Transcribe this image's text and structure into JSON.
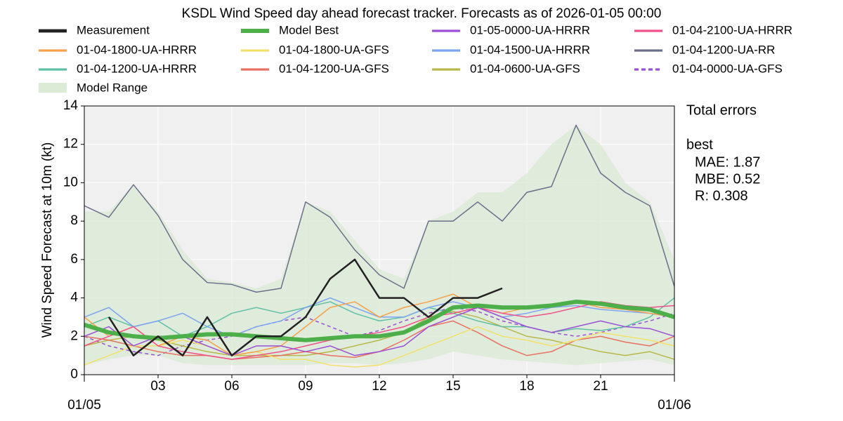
{
  "chart_data": {
    "type": "line",
    "title": "KSDL Wind Speed day ahead forecast tracker. Forecasts as of 2026-01-05 00:00",
    "y_label": "Wind Speed Forecast at 10m (kt)",
    "x": [
      0,
      1,
      2,
      3,
      4,
      5,
      6,
      7,
      8,
      9,
      10,
      11,
      12,
      13,
      14,
      15,
      16,
      17,
      18,
      19,
      20,
      21,
      22,
      23,
      24
    ],
    "xlim": [
      0,
      24
    ],
    "xticks": [
      {
        "value": 3,
        "label": "03"
      },
      {
        "value": 6,
        "label": "06"
      },
      {
        "value": 9,
        "label": "09"
      },
      {
        "value": 12,
        "label": "12"
      },
      {
        "value": 15,
        "label": "15"
      },
      {
        "value": 18,
        "label": "18"
      },
      {
        "value": 21,
        "label": "21"
      }
    ],
    "xticks_date": [
      {
        "value": 0,
        "label": "01/05"
      },
      {
        "value": 24,
        "label": "01/06"
      }
    ],
    "ylim": [
      0,
      14
    ],
    "yticks": [
      0,
      2,
      4,
      6,
      8,
      10,
      12,
      14
    ],
    "grid": true,
    "range": {
      "name": "Model Range",
      "color": "#dcebd6",
      "upper": [
        8.5,
        8.5,
        9.9,
        8.5,
        6.5,
        5.0,
        4.8,
        4.5,
        5.0,
        9.0,
        8.5,
        7.0,
        5.5,
        5.0,
        8.0,
        8.5,
        9.5,
        9.5,
        10.5,
        12.0,
        13.0,
        12.0,
        10.0,
        9.0,
        6.0
      ],
      "lower": [
        0.5,
        0.8,
        1.0,
        1.0,
        0.6,
        0.5,
        0.5,
        0.5,
        0.5,
        0.5,
        0.6,
        0.6,
        0.5,
        0.6,
        0.8,
        1.2,
        1.0,
        0.8,
        0.7,
        0.6,
        0.5,
        0.6,
        0.7,
        0.8,
        0.5
      ]
    },
    "series": [
      {
        "name": "Measurement",
        "color": "#222222",
        "width": 2.5,
        "values": [
          null,
          3,
          1,
          2,
          1,
          3,
          1,
          2,
          2,
          3,
          5,
          6,
          4,
          4,
          3,
          4,
          4,
          4.5,
          null,
          null,
          null,
          null,
          null,
          null,
          null
        ]
      },
      {
        "name": "Model Best",
        "color": "#4daf4a",
        "width": 6,
        "values": [
          2.6,
          2.2,
          2.0,
          1.9,
          2.0,
          2.1,
          2.1,
          2.0,
          1.9,
          1.8,
          1.9,
          2.0,
          2.0,
          2.2,
          2.8,
          3.5,
          3.6,
          3.5,
          3.5,
          3.6,
          3.8,
          3.7,
          3.5,
          3.4,
          3.0
        ]
      },
      {
        "name": "01-05-0000-UA-HRRR",
        "color": "#9b4fd6",
        "width": 1.5,
        "values": [
          2,
          2.5,
          1.5,
          2,
          2,
          1.5,
          1,
          1.5,
          1.5,
          1.2,
          1.5,
          1.0,
          1.2,
          1.5,
          2.5,
          3.0,
          3.5,
          3.0,
          2.5,
          2.2,
          2.5,
          2.8,
          2.5,
          2.4,
          2.0
        ]
      },
      {
        "name": "01-04-2100-UA-HRRR",
        "color": "#f0508a",
        "width": 1.5,
        "values": [
          1.5,
          2.0,
          2.5,
          1.5,
          1.2,
          1.0,
          0.8,
          1.0,
          1.2,
          1.5,
          1.8,
          2.0,
          2.2,
          2.5,
          3.0,
          3.2,
          3.5,
          3.2,
          3.0,
          3.2,
          3.5,
          3.8,
          3.6,
          3.5,
          3.6
        ]
      },
      {
        "name": "01-04-1800-UA-HRRR",
        "color": "#f5a04a",
        "width": 1.5,
        "values": [
          3.0,
          2.0,
          2.5,
          1.5,
          2.0,
          1.8,
          1.0,
          1.2,
          1.5,
          2.5,
          3.5,
          3.8,
          3.0,
          3.5,
          3.8,
          4.2,
          3.5,
          3.2,
          3.5,
          3.6,
          3.8,
          3.5,
          3.4,
          3.2,
          3.0
        ]
      },
      {
        "name": "01-04-1800-UA-GFS",
        "color": "#f2e06b",
        "width": 1.5,
        "values": [
          0.5,
          1.0,
          1.5,
          1.5,
          1.8,
          1.5,
          1.0,
          1.2,
          0.8,
          0.8,
          0.5,
          0.4,
          0.5,
          1.0,
          1.5,
          2.0,
          2.5,
          2.0,
          1.8,
          1.5,
          1.8,
          2.2,
          2.0,
          1.8,
          1.5
        ]
      },
      {
        "name": "01-04-1500-UA-HRRR",
        "color": "#7da4f0",
        "width": 1.5,
        "values": [
          3.0,
          3.5,
          2.5,
          2.8,
          3.2,
          2.5,
          2.0,
          2.5,
          2.8,
          3.5,
          4.0,
          3.5,
          3.0,
          3.0,
          3.5,
          3.8,
          3.5,
          3.0,
          3.2,
          3.5,
          3.6,
          3.4,
          3.3,
          3.2,
          3.0
        ]
      },
      {
        "name": "01-04-1200-UA-RR",
        "color": "#6a6f8a",
        "width": 1.5,
        "values": [
          8.8,
          8.2,
          9.9,
          8.3,
          6.0,
          4.8,
          4.7,
          4.3,
          4.5,
          9.0,
          8.2,
          6.5,
          5.2,
          4.5,
          8.0,
          8.0,
          9.0,
          8.0,
          9.5,
          9.8,
          13.0,
          10.5,
          9.5,
          8.8,
          4.6
        ]
      },
      {
        "name": "01-04-1200-UA-HRRR",
        "color": "#5ec0a6",
        "width": 1.5,
        "values": [
          2.5,
          3.0,
          2.5,
          2.8,
          2.0,
          2.5,
          3.2,
          3.5,
          3.2,
          3.5,
          3.8,
          3.2,
          2.8,
          3.0,
          3.5,
          3.2,
          2.8,
          2.5,
          2.5,
          2.2,
          2.4,
          2.3,
          2.5,
          3.0,
          4.0
        ]
      },
      {
        "name": "01-04-1200-UA-GFS",
        "color": "#e87060",
        "width": 1.5,
        "values": [
          2.0,
          1.8,
          1.5,
          1.2,
          1.0,
          1.0,
          0.8,
          0.9,
          1.0,
          1.2,
          1.0,
          0.9,
          1.2,
          1.8,
          2.5,
          2.8,
          2.2,
          1.5,
          1.0,
          1.2,
          1.8,
          2.0,
          1.7,
          1.5,
          2.0
        ]
      },
      {
        "name": "01-04-0600-UA-GFS",
        "color": "#b8b84a",
        "width": 1.5,
        "values": [
          1.5,
          1.8,
          2.0,
          1.8,
          1.5,
          1.2,
          1.0,
          1.0,
          1.0,
          1.0,
          1.2,
          1.5,
          1.8,
          2.2,
          3.0,
          3.3,
          3.0,
          2.5,
          2.0,
          1.8,
          1.5,
          1.2,
          1.0,
          1.2,
          0.8
        ]
      },
      {
        "name": "01-04-0000-UA-GFS",
        "color": "#9b4fd6",
        "width": 1.5,
        "dashed": true,
        "values": [
          2.0,
          1.5,
          1.2,
          1.0,
          1.5,
          1.8,
          2.0,
          2.5,
          2.8,
          3.0,
          2.5,
          2.0,
          2.3,
          2.8,
          3.2,
          3.5,
          3.3,
          2.8,
          2.5,
          2.2,
          2.0,
          2.2,
          2.5,
          2.8,
          3.2
        ]
      }
    ],
    "text_box": [
      "Total errors",
      "best",
      "MAE: 1.87",
      "MBE: 0.52",
      "R: 0.308"
    ]
  }
}
